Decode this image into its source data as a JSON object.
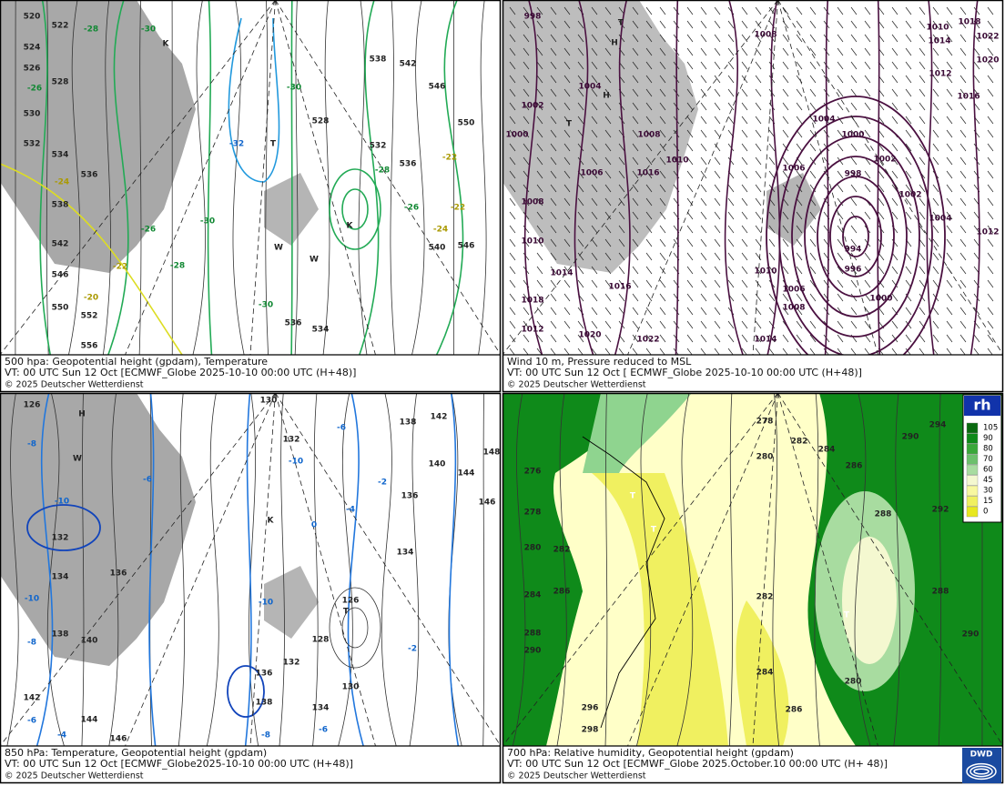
{
  "panels": [
    {
      "title": "500 hpa: Geopotential height (gpdam), Temperature",
      "valid_time": "VT: 00 UTC Sun  12 Oct [ECMWF_Globe 2025-10-10 00:00 UTC  (H+48)]",
      "copyright": "© 2025 Deutscher Wetterdienst",
      "labels": [
        "520",
        "522",
        "524",
        "526",
        "528",
        "530",
        "532",
        "534",
        "536",
        "538",
        "542",
        "546",
        "550",
        "552",
        "556",
        "528",
        "532",
        "538",
        "542",
        "546",
        "550",
        "536",
        "540",
        "546",
        "536",
        "534",
        "-28",
        "-30",
        "-26",
        "-24",
        "-26",
        "-22",
        "-28",
        "-20",
        "-30",
        "-32",
        "-30",
        "-30",
        "-28",
        "-26",
        "-24",
        "-22",
        "-22",
        "T",
        "K",
        "K",
        "W",
        "W"
      ]
    },
    {
      "title": "Wind 10 m, Pressure reduced to MSL",
      "valid_time": "VT: 00 UTC Sun  12 Oct [ ECMWF_Globe 2025-10-10 00:00 UTC (H+48)]",
      "copyright": "© 2025 Deutscher Wetterdienst",
      "labels": [
        "998",
        "1008",
        "1010",
        "1014",
        "1018",
        "1022",
        "1020",
        "1016",
        "1012",
        "1004",
        "1002",
        "1000",
        "1006",
        "1008",
        "1016",
        "1010",
        "1004",
        "1000",
        "998",
        "1002",
        "1006",
        "1010",
        "1008",
        "1006",
        "994",
        "996",
        "1000",
        "1014",
        "1016",
        "1022",
        "1020",
        "1018",
        "1012",
        "1008",
        "1002",
        "1004",
        "1012",
        "1010",
        "1014",
        "T",
        "H",
        "H",
        "T"
      ]
    },
    {
      "title": "850 hPa:  Temperature, Geopotential height (gpdam)",
      "valid_time": "VT: 00 UTC Sun  12 Oct [ECMWF_Globe2025-10-10 00:00 UTC (H+48)]",
      "copyright": "© 2025 Deutscher Wetterdienst",
      "labels": [
        "126",
        "130",
        "132",
        "132",
        "134",
        "136",
        "138",
        "140",
        "142",
        "144",
        "146",
        "138",
        "136",
        "134",
        "128",
        "126",
        "130",
        "134",
        "132",
        "136",
        "138",
        "140",
        "142",
        "144",
        "146",
        "148",
        "-6",
        "-8",
        "-10",
        "-10",
        "-10",
        "-8",
        "-6",
        "-4",
        "-2",
        "0",
        "-6",
        "-4",
        "-2",
        "-10",
        "-8",
        "-6",
        "H",
        "K",
        "T",
        "W"
      ]
    },
    {
      "title": "700 hPa:  Relative humidity, Geopotential height (gpdam)",
      "valid_time": "VT: 00 UTC Sun  12 Oct [ECMWF_Globe  2025.October.10 00:00 UTC (H+ 48)]",
      "copyright": "© 2025 Deutscher Wetterdienst",
      "labels": [
        "278",
        "280",
        "282",
        "284",
        "286",
        "288",
        "290",
        "292",
        "294",
        "276",
        "278",
        "280",
        "282",
        "284",
        "286",
        "288",
        "290",
        "296",
        "298",
        "280",
        "282",
        "284",
        "286",
        "290",
        "288",
        "T",
        "T",
        "T"
      ]
    }
  ],
  "rh_legend": {
    "title": "rh",
    "ticks": [
      105,
      90,
      80,
      70,
      60,
      45,
      30,
      15,
      0
    ]
  },
  "logo": "DWD"
}
